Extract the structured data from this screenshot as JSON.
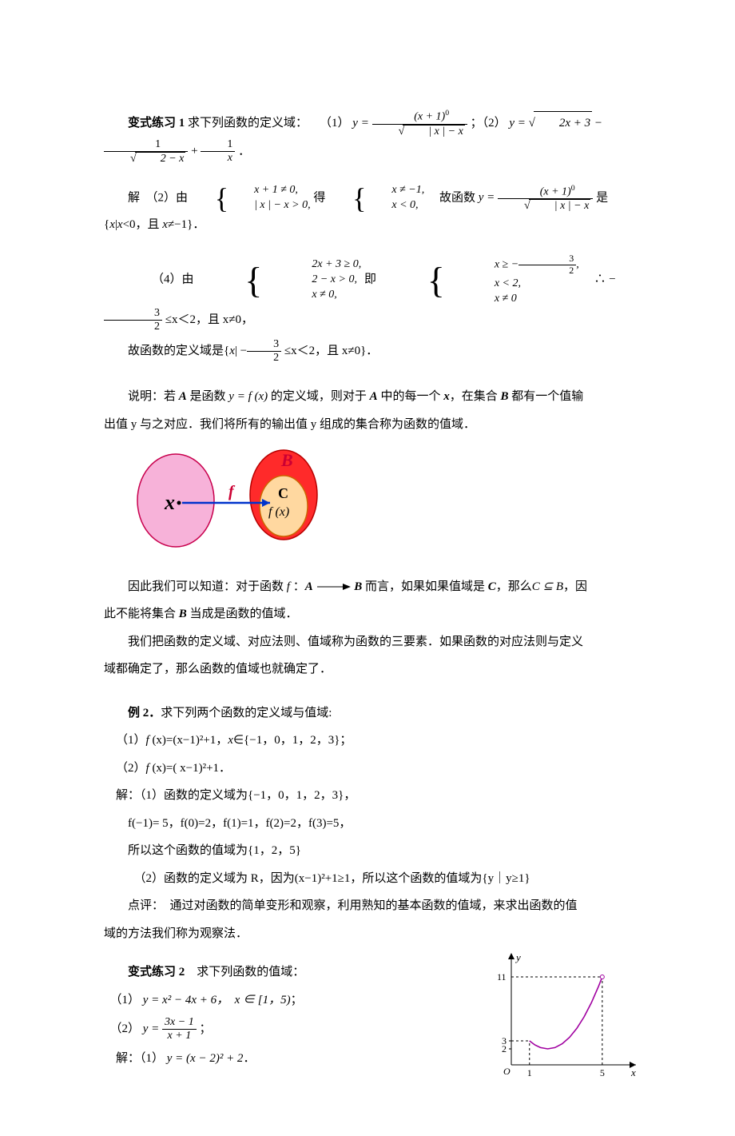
{
  "text": {
    "ex1_label": "变式练习 1",
    "ex1_body": " 求下列函数的定义域：　　（1）",
    "ex1_semicolon": "；（2）",
    "ex1_end": "．",
    "sol_label": "解",
    "sol2_prefix": "　（2）由",
    "sol2_get": "得",
    "sol2_mid": "　故函数",
    "sol2_is": "是{",
    "sol2_tail": "<0，且 ",
    "sol2_tail2": "≠−1}．",
    "sol4_prefix": "（4）由",
    "sol4_ie": "即",
    "sol4_therefore": "∴",
    "sol4_tail": "≤x＜2，且 x≠0，",
    "sol4_conc": "故函数的定义域是{",
    "sol4_range": "≤x＜2，且 x≠0}．",
    "note1a": "说明：若 ",
    "note1b": " 是函数 ",
    "note1c": " 的定义域，则对于 ",
    "note1d": " 中的每一个 ",
    "note1e": "，在集合 ",
    "note1f": " 都有一个值输",
    "note2a": "出值 y 与之对应．我们将所有的输出值 y 组成的集合称为函数的值域．",
    "concl1a": "因此我们可以知道：对于函数 ",
    "concl1b": "：",
    "concl1c": " 而言，如果如果值域是 ",
    "concl1d": "，那么",
    "concl1e": "，因",
    "concl2": "此不能将集合 ",
    "concl2b": " 当成是函数的值域．",
    "concl3": "我们把函数的定义域、对应法则、值域称为函数的三要素．如果函数的对应法则与定义",
    "concl4": "域都确定了，那么函数的值域也就确定了．",
    "example2_label": "例 2．",
    "example2_body": "求下列两个函数的定义域与值域:",
    "ex2_item1": "（1）",
    "ex2_item1_body": "(x)=(x−1)²+1，",
    "ex2_item1_set": "∈{−1，0，1，2，3}；",
    "ex2_item2": "（2）",
    "ex2_item2_body": "(x)=( x−1)²+1．",
    "ex2_sol_hdr": "解：（1）函数的定义域为{−1，0，1，2，3}，",
    "ex2_values": "f(−1)= 5，f(0)=2，f(1)=1，f(2)=2，f(3)=5，",
    "ex2_range": "所以这个函数的值域为{1，2，5}",
    "ex2_part2": "（2）函数的定义域为 R，因为(x−1)²+1≥1，所以这个函数的值域为{y｜y≥1}",
    "ex2_review1": "点评：　通过对函数的简单变形和观察，利用熟知的基本函数的值域，来求出函数的值",
    "ex2_review2": "域的方法我们称为观察法．",
    "var2_label": "变式练习 2",
    "var2_body": "　求下列函数的值域：",
    "var2_1_prefix": "（1）",
    "var2_1_eq": "y = x² − 4x + 6，　x ∈ [1，5)",
    "var2_1_tail": "；",
    "var2_2_prefix": "（2）",
    "var2_2_tail": "；",
    "var2_sol_prefix": "解：（1）",
    "var2_sol_eq": "y = (x − 2)² + 2",
    "var2_sol_tail": "．"
  },
  "math": {
    "y_eq": "y =",
    "eq1_num": "(x + 1)",
    "eq1_num_sup": "0",
    "eq1_den_rad": "| x | − x",
    "eq2_rad1": "2x + 3",
    "eq2_minus": " − ",
    "eq2_frac_num": "1",
    "eq2_frac_den_rad": "2 − x",
    "eq2_plus": " + ",
    "eq2_last_num": "1",
    "eq2_last_den": "x",
    "sys2a_1": "x + 1 ≠ 0,",
    "sys2a_2": "| x | − x > 0,",
    "sys2b_1": "x ≠ −1,",
    "sys2b_2": "x < 0,",
    "x_it": "x",
    "x_var": "x",
    "sys4a_1": "2x + 3 ≥ 0,",
    "sys4a_2": "2 − x > 0,",
    "sys4a_3": "x ≠ 0,",
    "sys4b_1a": "x ≥ −",
    "sys4b_1_num": "3",
    "sys4b_1_den": "2",
    "sys4b_1b": ",",
    "sys4b_2": "x < 2,",
    "sys4b_3": "x ≠ 0",
    "neg_32_num": "3",
    "neg_32_den": "2",
    "minus": "−",
    "bar": "|",
    "A": "A",
    "B": "B",
    "C": "C",
    "yfx": "y = f (x)",
    "f_label": "f",
    "A_arrow_B_A": "A",
    "A_arrow_B_B": "B",
    "CsubsetB": "C ⊆ B",
    "f_it": "f ",
    "var2_2_num": "3x − 1",
    "var2_2_den": "x + 1"
  },
  "diagram": {
    "left_fill": "#f7b2d9",
    "left_stroke": "#c8004d",
    "right_outer_fill": "#ff2a2a",
    "right_outer_stroke": "#b80000",
    "right_inner_fill": "#ffd8a0",
    "right_inner_stroke": "#cc6600",
    "line_color": "#0033cc",
    "label_x": "x",
    "label_f": "f",
    "label_B": "B",
    "label_C": "C",
    "label_fx": "f (x)"
  },
  "arrow": {
    "stroke": "#000000"
  },
  "chart": {
    "width": 190,
    "height": 170,
    "axis_color": "#000000",
    "curve_color": "#a000a0",
    "dash_color": "#000000",
    "xlabel_O": "O",
    "xlabel_1": "1",
    "xlabel_5": "5",
    "ylabel_2": "2",
    "ylabel_3": "3",
    "ylabel_11": "11",
    "x_axis_label": "x",
    "y_axis_label": "y",
    "x_domain": [
      0,
      6.5
    ],
    "y_domain": [
      0,
      13
    ],
    "curve_points": [
      [
        1,
        3
      ],
      [
        1.3,
        2.49
      ],
      [
        1.6,
        2.16
      ],
      [
        2,
        2
      ],
      [
        2.4,
        2.16
      ],
      [
        2.8,
        2.64
      ],
      [
        3.2,
        3.44
      ],
      [
        3.6,
        4.56
      ],
      [
        4.0,
        6.0
      ],
      [
        4.4,
        7.76
      ],
      [
        4.8,
        9.84
      ],
      [
        5.0,
        11.0
      ]
    ]
  }
}
